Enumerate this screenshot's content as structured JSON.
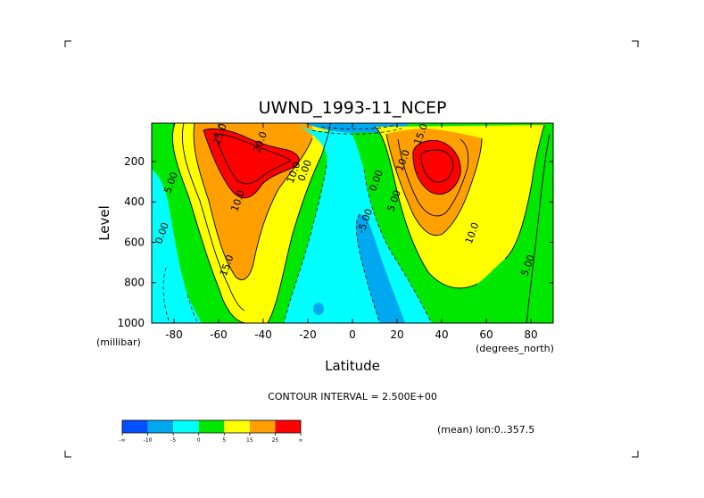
{
  "chart_data": {
    "type": "contour",
    "title": "UWND_1993-11_NCEP",
    "xlabel": "Latitude",
    "ylabel": "Level",
    "x_units": "(degrees_north)",
    "y_units": "(millibar)",
    "xlim": [
      -90,
      90
    ],
    "ylim": [
      1000,
      10
    ],
    "x_ticks": [
      -80,
      -60,
      -40,
      -20,
      0,
      20,
      40,
      60,
      80
    ],
    "y_ticks": [
      200,
      400,
      600,
      800,
      1000
    ],
    "contour_interval_text": "CONTOUR INTERVAL = 2.500E+00",
    "mean_text": "(mean) lon:0..357.5",
    "colorbar": {
      "labels": [
        "-∞",
        "-10",
        "-5",
        "0",
        "5",
        "15",
        "25",
        "∞"
      ],
      "colors": [
        "#0050ff",
        "#00a8f0",
        "#00ffff",
        "#00e800",
        "#ffff00",
        "#ffa000",
        "#ff0000"
      ]
    },
    "contour_labels": [
      {
        "text": "20.0",
        "lat": -40,
        "lev": 110
      },
      {
        "text": "25.0",
        "lat": -58,
        "lev": 70
      },
      {
        "text": "10.0",
        "lat": -25,
        "lev": 260
      },
      {
        "text": "10.0",
        "lat": -50,
        "lev": 400
      },
      {
        "text": "15.0",
        "lat": -55,
        "lev": 720
      },
      {
        "text": "5.00",
        "lat": -80,
        "lev": 310
      },
      {
        "text": "0.00",
        "lat": -84,
        "lev": 560
      },
      {
        "text": "0.00",
        "lat": -20,
        "lev": 250
      },
      {
        "text": "0.00",
        "lat": 12,
        "lev": 300
      },
      {
        "text": "-5.00",
        "lat": 7,
        "lev": 500
      },
      {
        "text": "10.0",
        "lat": 24,
        "lev": 200
      },
      {
        "text": "5.00",
        "lat": 20,
        "lev": 400
      },
      {
        "text": "15.0",
        "lat": 32,
        "lev": 70
      },
      {
        "text": "10.0",
        "lat": 55,
        "lev": 560
      },
      {
        "text": "5.00",
        "lat": 80,
        "lev": 720
      }
    ]
  }
}
